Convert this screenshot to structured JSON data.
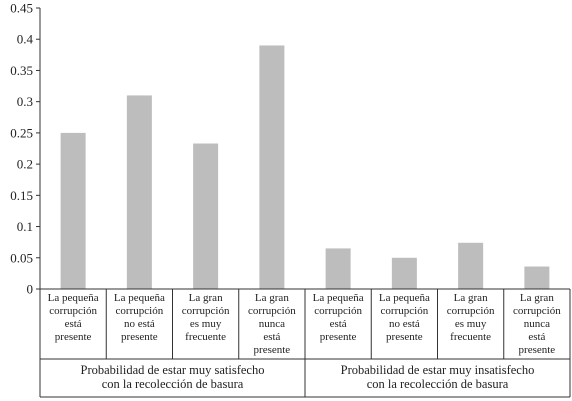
{
  "chart_data": {
    "type": "bar",
    "title": "",
    "xlabel": "",
    "ylabel": "",
    "ylim": [
      0,
      0.45
    ],
    "yticks": [
      "0",
      "0.05",
      "0.1",
      "0.15",
      "0.2",
      "0.25",
      "0.3",
      "0.35",
      "0.4",
      "0.45"
    ],
    "grid": false,
    "bar_color": "#bdbdbd",
    "categories": [
      [
        "La pequeña",
        "corrupción",
        "está",
        "presente"
      ],
      [
        "La pequeña",
        "corrupción",
        "no está",
        "presente"
      ],
      [
        "La gran",
        "corrupción",
        "es muy",
        "frecuente"
      ],
      [
        "La gran",
        "corrupción",
        "nunca",
        "está",
        "presente"
      ],
      [
        "La pequeña",
        "corrupción",
        "está",
        "presente"
      ],
      [
        "La pequeña",
        "corrupción",
        "no está",
        "presente"
      ],
      [
        "La gran",
        "corrupción",
        "es muy",
        "frecuente"
      ],
      [
        "La gran",
        "corrupción",
        "nunca",
        "está",
        "presente"
      ]
    ],
    "values": [
      0.25,
      0.31,
      0.233,
      0.39,
      0.065,
      0.05,
      0.074,
      0.036
    ],
    "groups": [
      {
        "label_lines": [
          "Probabilidad de estar muy satisfecho",
          "con la recolección de basura"
        ]
      },
      {
        "label_lines": [
          "Probabilidad de estar muy insatisfecho",
          "con la recolección de basura"
        ]
      }
    ]
  }
}
